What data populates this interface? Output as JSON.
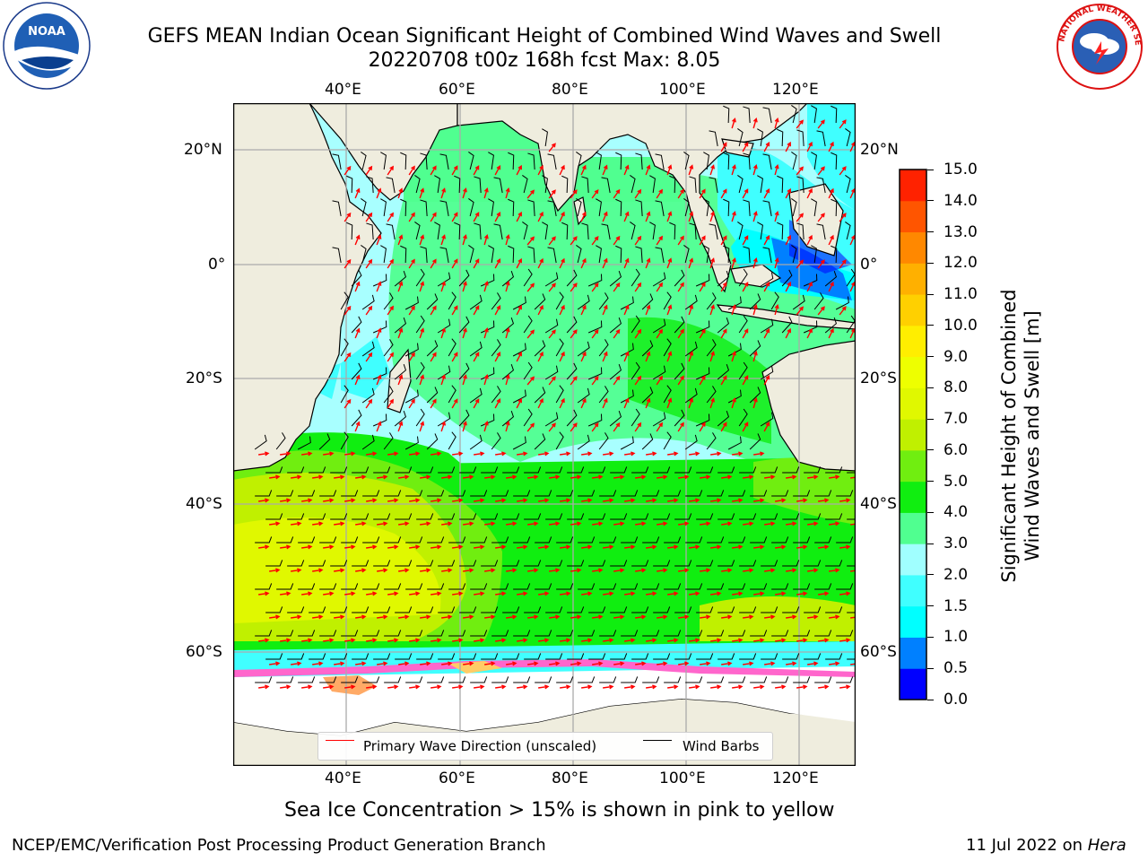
{
  "title": {
    "line1": "GEFS MEAN Indian Ocean Significant Height of Combined Wind Waves and Swell",
    "line2": "20220708 t00z 168h fcst   Max: 8.05"
  },
  "logos": {
    "left": {
      "name": "noaa-logo",
      "text": "NOAA",
      "ring_text": "NATIONAL OCEANIC AND ATMOSPHERIC ADMINISTRATION · U.S. DEPARTMENT OF COMMERCE"
    },
    "right": {
      "name": "nws-logo",
      "ring_text": "NATIONAL WEATHER SERVICE"
    }
  },
  "map": {
    "lon_labels": [
      "40°E",
      "60°E",
      "80°E",
      "100°E",
      "120°E"
    ],
    "lat_labels": [
      "20°N",
      "0°",
      "20°S",
      "40°S",
      "60°S"
    ],
    "land_color": "#efedde",
    "grid": true
  },
  "legend": {
    "primary_wave": "Primary Wave Direction (unscaled)",
    "wind_barbs": "Wind Barbs",
    "wave_color": "#ff0000",
    "barb_color": "#000000"
  },
  "colorbar": {
    "title_line1": "Significant Height of Combined",
    "title_line2": "Wind Waves and Swell [m]",
    "tick_labels": [
      "0.0",
      "0.5",
      "1.0",
      "1.5",
      "2.0",
      "3.0",
      "4.0",
      "5.0",
      "6.0",
      "7.0",
      "8.0",
      "9.0",
      "10.0",
      "11.0",
      "12.0",
      "13.0",
      "14.0",
      "15.0"
    ],
    "colors": [
      "#0000ff",
      "#0080ff",
      "#00ffff",
      "#40ffff",
      "#a0ffff",
      "#50ff90",
      "#10ee10",
      "#70ee10",
      "#c0f000",
      "#e0f800",
      "#eeff00",
      "#ffee00",
      "#ffd000",
      "#ffb000",
      "#ff8800",
      "#ff5500",
      "#ff2200"
    ]
  },
  "caption": "Sea Ice Concentration > 15% is shown in pink to yellow",
  "footer": {
    "left": "NCEP/EMC/Verification Post Processing Product Generation Branch",
    "right_date": "11 Jul 2022 on ",
    "right_host": "Hera"
  }
}
